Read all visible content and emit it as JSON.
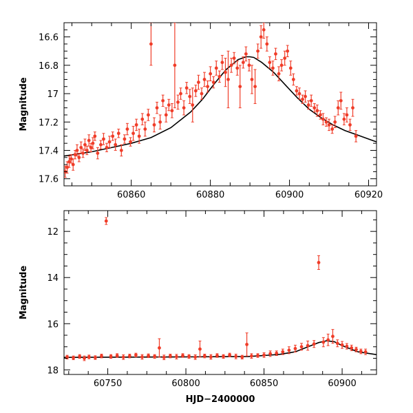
{
  "chart_data": [
    {
      "type": "scatter",
      "panel": "top",
      "xlabel": "",
      "ylabel": "Magnitude",
      "xlim": [
        60843,
        60922
      ],
      "ylim": [
        17.65,
        16.5
      ],
      "y_inverted": true,
      "x_ticks": [
        60860,
        60880,
        60900,
        60920
      ],
      "x_tick_labels": [
        "60860",
        "60880",
        "60900",
        "60920"
      ],
      "y_ticks": [
        16.6,
        16.8,
        17.0,
        17.2,
        17.4,
        17.6
      ],
      "y_tick_labels": [
        "16.6",
        "16.8",
        "17",
        "17.2",
        "17.4",
        "17.6"
      ],
      "grid": false,
      "marker_color": "#f03c28",
      "model_color": "#000000",
      "model_curve": {
        "x": [
          60843,
          60850,
          60855,
          60860,
          60865,
          60870,
          60875,
          60878,
          60881,
          60884,
          60887,
          60889,
          60890,
          60891,
          60893,
          60896,
          60899,
          60902,
          60905,
          60908,
          60911,
          60914,
          60917,
          60920,
          60922
        ],
        "y": [
          17.44,
          17.41,
          17.38,
          17.35,
          17.31,
          17.24,
          17.13,
          17.04,
          16.93,
          16.83,
          16.76,
          16.74,
          16.74,
          16.745,
          16.78,
          16.85,
          16.94,
          17.03,
          17.11,
          17.17,
          17.22,
          17.26,
          17.29,
          17.32,
          17.34
        ]
      },
      "series": [
        {
          "x": [
            60843.3,
            60843.8,
            60844.3,
            60844.8,
            60845.3,
            60845.8,
            60846.3,
            60846.8,
            60847.3,
            60847.8,
            60848.3,
            60848.8,
            60849.3,
            60849.8,
            60850.3,
            60850.8,
            60851.5,
            60852.3,
            60853.0,
            60853.8,
            60854.5,
            60855.3,
            60856.0,
            60856.8,
            60857.5,
            60858.3,
            60859.0,
            60859.8,
            60860.5,
            60861.3,
            60862.0,
            60862.8,
            60863.5,
            60864.3,
            60865.0,
            60865.8,
            60866.5,
            60867.3,
            60868.0,
            60868.8,
            60869.5,
            60870.3,
            60871.0,
            60871.8,
            60872.5,
            60873.3,
            60874.0,
            60874.8,
            60875.5,
            60876.3,
            60877.0,
            60877.8,
            60878.5,
            60879.3,
            60880.0,
            60880.8,
            60881.5,
            60882.3,
            60883.0,
            60883.8,
            60884.5,
            60885.3,
            60886.0,
            60886.8,
            60887.5,
            60888.3,
            60889.0,
            60889.8,
            60890.5,
            60891.3,
            60892.0,
            60892.8,
            60893.5,
            60894.3,
            60895.0,
            60895.8,
            60896.5,
            60897.3,
            60898.0,
            60898.8,
            60899.5,
            60900.3,
            60901.0,
            60901.8,
            60902.5,
            60903.3,
            60904.0,
            60904.8,
            60905.5,
            60906.3,
            60907.0,
            60907.8,
            60908.5,
            60909.3,
            60910.0,
            60910.8,
            60911.5,
            60912.3,
            60913.0,
            60913.8,
            60914.5,
            60915.3,
            60916.0,
            60916.8
          ],
          "y": [
            17.55,
            17.52,
            17.48,
            17.46,
            17.5,
            17.43,
            17.4,
            17.45,
            17.38,
            17.42,
            17.36,
            17.4,
            17.33,
            17.38,
            17.35,
            17.3,
            17.42,
            17.36,
            17.32,
            17.38,
            17.34,
            17.3,
            17.36,
            17.28,
            17.4,
            17.32,
            17.25,
            17.34,
            17.28,
            17.22,
            17.3,
            17.18,
            17.25,
            17.15,
            16.65,
            17.22,
            17.1,
            17.2,
            17.05,
            17.15,
            17.08,
            17.12,
            16.8,
            17.06,
            17.0,
            17.1,
            16.96,
            17.02,
            17.08,
            16.98,
            16.92,
            17.0,
            16.9,
            16.95,
            16.86,
            16.92,
            16.82,
            16.88,
            16.78,
            16.85,
            16.9,
            16.8,
            16.75,
            16.82,
            16.95,
            16.78,
            16.72,
            16.8,
            16.9,
            16.95,
            16.7,
            16.6,
            16.55,
            16.65,
            16.78,
            16.82,
            16.72,
            16.86,
            16.8,
            16.75,
            16.7,
            16.82,
            16.9,
            16.98,
            17.0,
            17.04,
            17.02,
            17.08,
            17.05,
            17.1,
            17.12,
            17.15,
            17.18,
            17.2,
            17.22,
            17.25,
            17.2,
            17.1,
            17.05,
            17.18,
            17.15,
            17.22,
            17.1,
            17.3
          ],
          "err": [
            0.04,
            0.04,
            0.04,
            0.03,
            0.04,
            0.03,
            0.04,
            0.03,
            0.04,
            0.03,
            0.04,
            0.03,
            0.04,
            0.03,
            0.04,
            0.03,
            0.04,
            0.03,
            0.04,
            0.03,
            0.04,
            0.03,
            0.04,
            0.03,
            0.04,
            0.03,
            0.04,
            0.03,
            0.05,
            0.04,
            0.05,
            0.04,
            0.05,
            0.04,
            0.15,
            0.05,
            0.04,
            0.05,
            0.04,
            0.05,
            0.04,
            0.05,
            0.3,
            0.05,
            0.04,
            0.05,
            0.04,
            0.05,
            0.12,
            0.04,
            0.05,
            0.04,
            0.05,
            0.04,
            0.05,
            0.04,
            0.05,
            0.04,
            0.05,
            0.1,
            0.2,
            0.05,
            0.04,
            0.05,
            0.15,
            0.04,
            0.05,
            0.04,
            0.1,
            0.12,
            0.05,
            0.08,
            0.06,
            0.05,
            0.04,
            0.05,
            0.04,
            0.05,
            0.04,
            0.05,
            0.04,
            0.05,
            0.04,
            0.03,
            0.04,
            0.03,
            0.04,
            0.03,
            0.04,
            0.03,
            0.04,
            0.03,
            0.04,
            0.03,
            0.04,
            0.03,
            0.04,
            0.05,
            0.06,
            0.04,
            0.05,
            0.04,
            0.06,
            0.04
          ]
        }
      ]
    },
    {
      "type": "scatter",
      "panel": "bottom",
      "xlabel": "HJD−2400000",
      "ylabel": "Magnitude",
      "xlim": [
        60722,
        60922
      ],
      "ylim": [
        18.2,
        11.1
      ],
      "y_inverted": true,
      "x_ticks": [
        60750,
        60800,
        60850,
        60900
      ],
      "x_tick_labels": [
        "60750",
        "60800",
        "60850",
        "60900"
      ],
      "y_ticks": [
        12,
        14,
        16,
        18
      ],
      "y_tick_labels": [
        "12",
        "14",
        "16",
        "18"
      ],
      "grid": false,
      "marker_color": "#f03c28",
      "model_color": "#000000",
      "model_curve": {
        "x": [
          60722,
          60750,
          60800,
          60840,
          60850,
          60860,
          60870,
          60880,
          60885,
          60890,
          60895,
          60900,
          60910,
          60922
        ],
        "y": [
          17.46,
          17.45,
          17.44,
          17.42,
          17.38,
          17.33,
          17.22,
          16.95,
          16.82,
          16.74,
          16.78,
          16.95,
          17.22,
          17.34
        ]
      },
      "series": [
        {
          "x": [
            60724,
            60728,
            60732,
            60735,
            60738,
            60742,
            60746,
            60749,
            60752,
            60756,
            60760,
            60764,
            60768,
            60772,
            60776,
            60780,
            60783,
            60786,
            60790,
            60794,
            60798,
            60802,
            60806,
            60809,
            60812,
            60816,
            60820,
            60824,
            60828,
            60832,
            60836,
            60839,
            60842,
            60846,
            60850,
            60854,
            60858,
            60862,
            60866,
            60870,
            60874,
            60878,
            60882,
            60885,
            60888,
            60891,
            60894,
            60897,
            60900,
            60903,
            60906,
            60909,
            60912,
            60915
          ],
          "y": [
            17.45,
            17.48,
            17.42,
            17.5,
            17.44,
            17.47,
            17.4,
            11.55,
            17.42,
            17.38,
            17.45,
            17.4,
            17.36,
            17.44,
            17.39,
            17.42,
            17.05,
            17.46,
            17.4,
            17.43,
            17.38,
            17.42,
            17.45,
            17.1,
            17.4,
            17.44,
            17.38,
            17.42,
            17.36,
            17.42,
            17.45,
            16.9,
            17.4,
            17.38,
            17.36,
            17.3,
            17.28,
            17.22,
            17.15,
            17.08,
            17.0,
            16.95,
            16.88,
            13.35,
            16.8,
            16.7,
            16.55,
            16.85,
            16.92,
            16.98,
            17.05,
            17.12,
            17.2,
            17.22
          ],
          "err": [
            0.08,
            0.08,
            0.08,
            0.1,
            0.08,
            0.08,
            0.08,
            0.15,
            0.08,
            0.08,
            0.1,
            0.08,
            0.08,
            0.1,
            0.08,
            0.08,
            0.4,
            0.1,
            0.08,
            0.1,
            0.08,
            0.08,
            0.1,
            0.35,
            0.08,
            0.1,
            0.08,
            0.08,
            0.08,
            0.1,
            0.08,
            0.5,
            0.1,
            0.08,
            0.1,
            0.12,
            0.1,
            0.12,
            0.15,
            0.15,
            0.15,
            0.2,
            0.15,
            0.3,
            0.2,
            0.25,
            0.3,
            0.15,
            0.15,
            0.12,
            0.12,
            0.1,
            0.1,
            0.12
          ]
        }
      ]
    }
  ]
}
